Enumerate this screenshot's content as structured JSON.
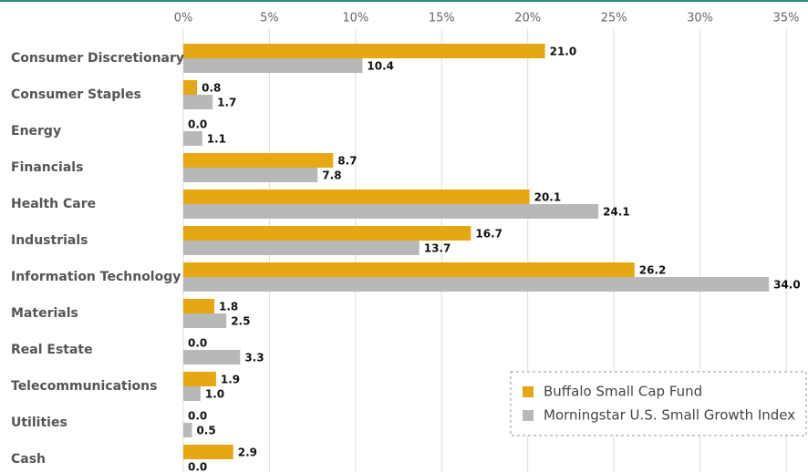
{
  "chart_data": {
    "type": "bar",
    "orientation": "horizontal",
    "categories": [
      "Consumer Discretionary",
      "Consumer Staples",
      "Energy",
      "Financials",
      "Health Care",
      "Industrials",
      "Information Technology",
      "Materials",
      "Real Estate",
      "Telecommunications",
      "Utilities",
      "Cash"
    ],
    "series": [
      {
        "name": "Buffalo Small Cap Fund",
        "color": "#e5a712",
        "values": [
          21.0,
          0.8,
          0.0,
          8.7,
          20.1,
          16.7,
          26.2,
          1.8,
          0.0,
          1.9,
          0.0,
          2.9
        ],
        "value_labels": [
          "21.0",
          "0.8",
          "0.0",
          "8.7",
          "20.1",
          "16.7",
          "26.2",
          "1.8",
          "0.0",
          "1.9",
          "0.0",
          "2.9"
        ]
      },
      {
        "name": "Morningstar U.S. Small Growth Index",
        "color": "#b8b8b8",
        "values": [
          10.4,
          1.7,
          1.1,
          7.8,
          24.1,
          13.7,
          34.0,
          2.5,
          3.3,
          1.0,
          0.5,
          0.0
        ],
        "value_labels": [
          "10.4",
          "1.7",
          "1.1",
          "7.8",
          "24.1",
          "13.7",
          "34.0",
          "2.5",
          "3.3",
          "1.0",
          "0.5",
          "0.0"
        ]
      }
    ],
    "xlim": [
      0,
      35
    ],
    "xticks": [
      {
        "value": 0,
        "label": "0%"
      },
      {
        "value": 5,
        "label": "5%"
      },
      {
        "value": 10,
        "label": "10%"
      },
      {
        "value": 15,
        "label": "15%"
      },
      {
        "value": 20,
        "label": "20%"
      },
      {
        "value": 25,
        "label": "25%"
      },
      {
        "value": 30,
        "label": "30%"
      },
      {
        "value": 35,
        "label": "35%"
      }
    ],
    "grid": true,
    "legend": "lower right"
  }
}
